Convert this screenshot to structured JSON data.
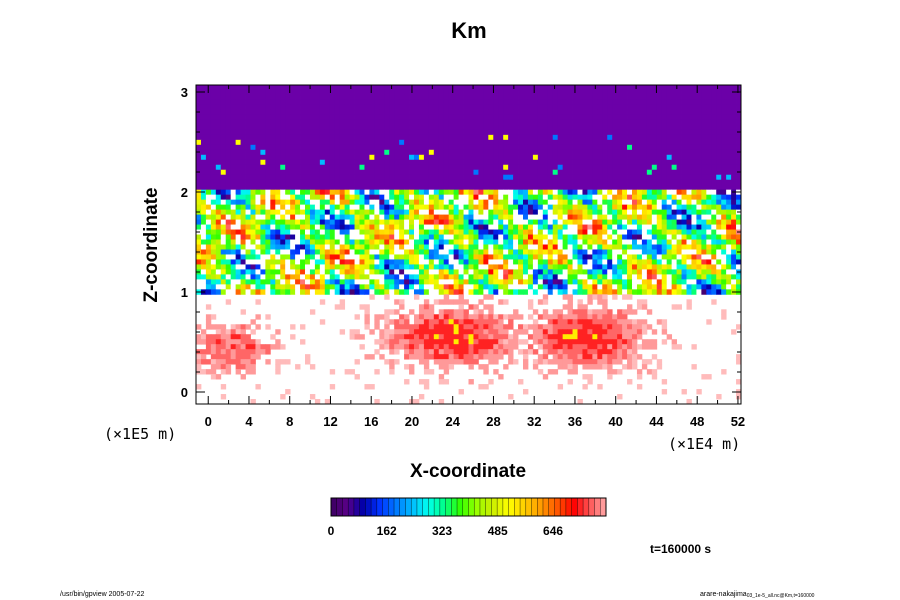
{
  "chart_data": {
    "type": "heatmap",
    "title": "Km",
    "xlabel": "X-coordinate",
    "ylabel": "Z-coordinate",
    "x_scale_note": "(×1E4 m)",
    "y_scale_note": "(×1E5 m)",
    "x_ticks": [
      0,
      4,
      8,
      12,
      16,
      20,
      24,
      28,
      32,
      36,
      40,
      44,
      48,
      52
    ],
    "y_ticks": [
      0,
      1,
      2,
      3
    ],
    "xlim": [
      -1.2,
      52.3
    ],
    "ylim": [
      -0.12,
      3.07
    ],
    "colorbar": {
      "ticks": [
        0,
        162,
        323,
        485,
        646
      ],
      "range": [
        0,
        800
      ],
      "colors": [
        "#3a0060",
        "#5a0088",
        "#0000aa",
        "#0033ff",
        "#0077ff",
        "#00bbff",
        "#00ffee",
        "#00ff88",
        "#33ff00",
        "#99ff00",
        "#ccee00",
        "#ffff00",
        "#ffcc00",
        "#ff9900",
        "#ff5500",
        "#ff0000",
        "#ff5555",
        "#ffaaaa"
      ]
    },
    "time_label": "t=160000 s",
    "regions": [
      {
        "name": "upper-layer",
        "z_range": [
          2.0,
          3.07
        ],
        "approx_value": 10
      },
      {
        "name": "turbulent-layer",
        "z_range": [
          1.0,
          2.0
        ],
        "value_range": [
          0,
          800
        ]
      },
      {
        "name": "lower-layer",
        "z_range": [
          -0.12,
          1.0
        ],
        "value_range": [
          600,
          800
        ]
      }
    ]
  },
  "footer": {
    "left": "/usr/bin/gpview 2005-07-22",
    "right_main": "arare-nakajima",
    "right_sub": "03_1e-5_all.nc@Km,t=160000"
  }
}
